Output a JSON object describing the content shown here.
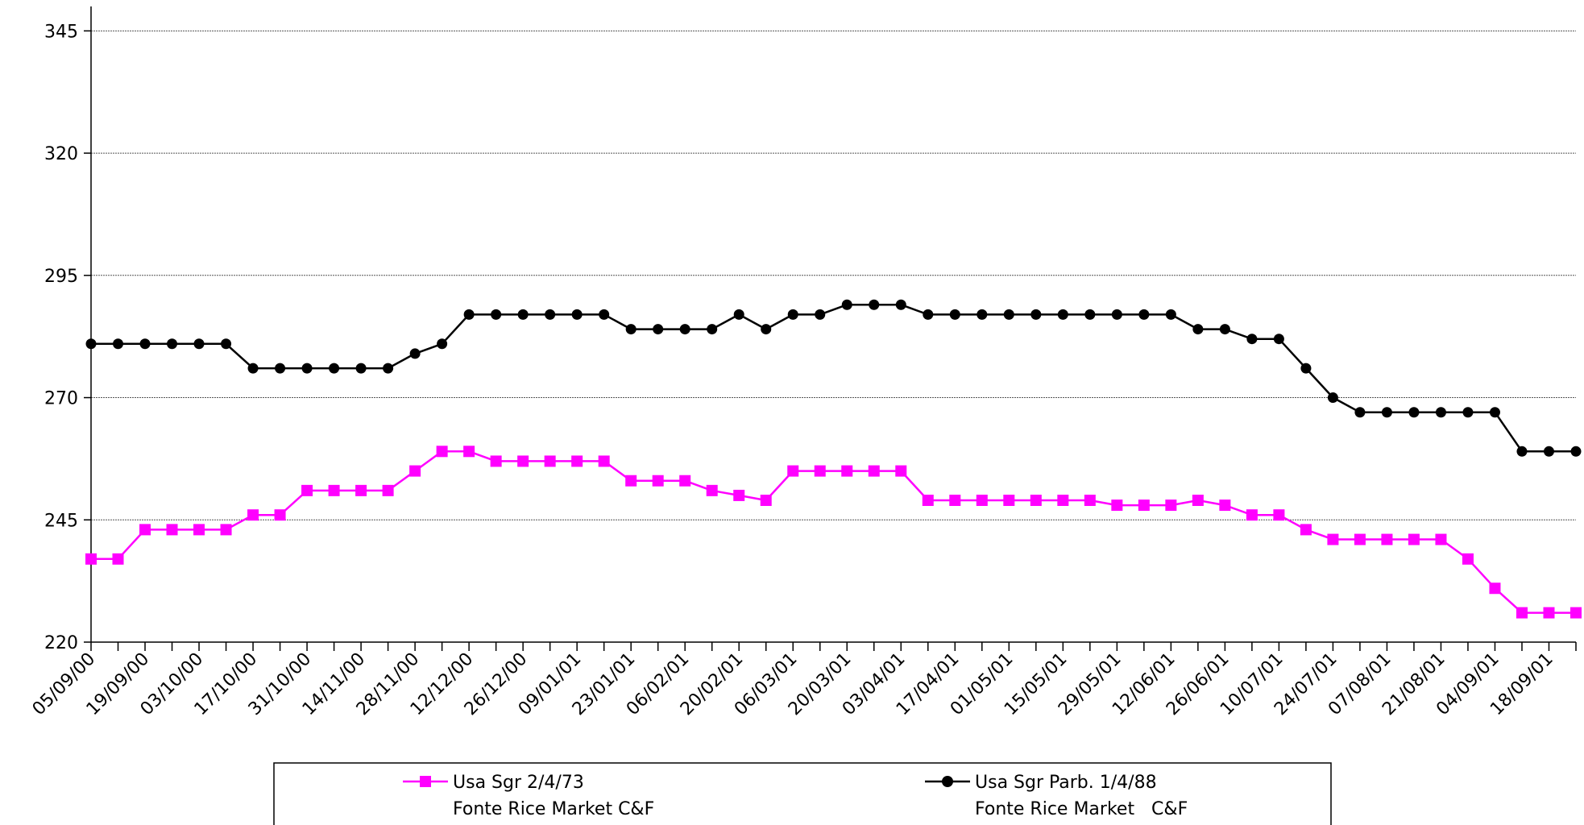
{
  "chart_data": {
    "type": "line",
    "title": "",
    "xlabel": "",
    "ylabel": "",
    "ylim": [
      220,
      350
    ],
    "yticks": [
      220,
      245,
      270,
      295,
      320,
      345
    ],
    "grid": true,
    "legend_position": "bottom",
    "x_tick_labels": [
      "05/09/00",
      "19/09/00",
      "03/10/00",
      "17/10/00",
      "31/10/00",
      "14/11/00",
      "28/11/00",
      "12/12/00",
      "26/12/00",
      "09/01/01",
      "23/01/01",
      "06/02/01",
      "20/02/01",
      "06/03/01",
      "20/03/01",
      "03/04/01",
      "17/04/01",
      "01/05/01",
      "15/05/01",
      "29/05/01",
      "12/06/01",
      "26/06/01",
      "10/07/01",
      "24/07/01",
      "07/08/01",
      "21/08/01",
      "04/09/01",
      "18/09/01"
    ],
    "x": [
      "05/09/00",
      "12/09/00",
      "19/09/00",
      "26/09/00",
      "03/10/00",
      "10/10/00",
      "17/10/00",
      "24/10/00",
      "31/10/00",
      "07/11/00",
      "14/11/00",
      "21/11/00",
      "28/11/00",
      "05/12/00",
      "12/12/00",
      "19/12/00",
      "26/12/00",
      "02/01/01",
      "09/01/01",
      "16/01/01",
      "23/01/01",
      "30/01/01",
      "06/02/01",
      "13/02/01",
      "20/02/01",
      "27/02/01",
      "06/03/01",
      "13/03/01",
      "20/03/01",
      "27/03/01",
      "03/04/01",
      "10/04/01",
      "17/04/01",
      "24/04/01",
      "01/05/01",
      "08/05/01",
      "15/05/01",
      "22/05/01",
      "29/05/01",
      "05/06/01",
      "12/06/01",
      "19/06/01",
      "26/06/01",
      "03/07/01",
      "10/07/01",
      "17/07/01",
      "24/07/01",
      "31/07/01",
      "07/08/01",
      "14/08/01",
      "21/08/01",
      "28/08/01",
      "04/09/01",
      "11/09/01",
      "18/09/01",
      "25/09/01"
    ],
    "series": [
      {
        "name": "Usa Sgr 2/4/73",
        "sub": "Fonte Rice Market C&F",
        "color": "#ff00ff",
        "marker": "square",
        "values": [
          237,
          237,
          243,
          243,
          243,
          243,
          246,
          246,
          251,
          251,
          251,
          251,
          255,
          259,
          259,
          257,
          257,
          257,
          257,
          257,
          253,
          253,
          253,
          251,
          250,
          249,
          255,
          255,
          255,
          255,
          255,
          249,
          249,
          249,
          249,
          249,
          249,
          249,
          248,
          248,
          248,
          249,
          248,
          246,
          246,
          243,
          241,
          241,
          241,
          241,
          241,
          237,
          231,
          226,
          226,
          226
        ]
      },
      {
        "name": "Usa Sgr Parb. 1/4/88",
        "sub": "Fonte Rice Market   C&F",
        "color": "#000000",
        "marker": "circle",
        "values": [
          281,
          281,
          281,
          281,
          281,
          281,
          276,
          276,
          276,
          276,
          276,
          276,
          279,
          281,
          287,
          287,
          287,
          287,
          287,
          287,
          284,
          284,
          284,
          284,
          287,
          284,
          287,
          287,
          289,
          289,
          289,
          287,
          287,
          287,
          287,
          287,
          287,
          287,
          287,
          287,
          287,
          284,
          284,
          282,
          282,
          276,
          270,
          267,
          267,
          267,
          267,
          267,
          267,
          259,
          259,
          259
        ]
      }
    ]
  }
}
